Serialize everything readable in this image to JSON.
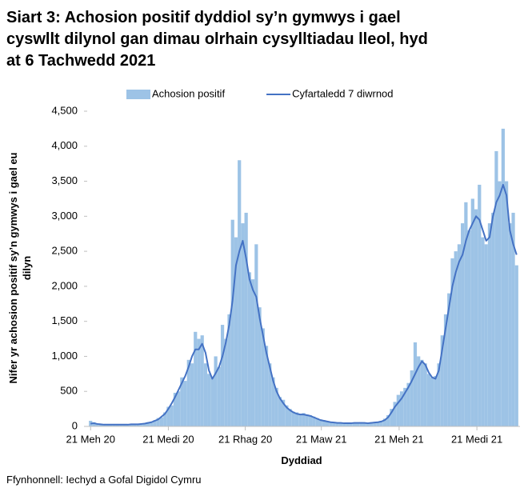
{
  "chart_data": {
    "type": "bar-line",
    "title_lines": [
      "Siart 3: Achosion positif dyddiol sy’n gymwys i gael",
      "cyswllt dilynol gan dimau olrhain cysylltiadau lleol, hyd",
      "at 6 Tachwedd 2021"
    ],
    "y_label_lines": [
      "Nifer yr achosion positif sy’n gymwys i gael eu",
      "dilyn"
    ],
    "x_label": "Dyddiad",
    "source": "Ffynhonnell: Iechyd a Gofal Digidol Cymru",
    "x": [
      0,
      4,
      8,
      12,
      16,
      20,
      24,
      28,
      32,
      36,
      40,
      44,
      48,
      52,
      56,
      60,
      64,
      68,
      72,
      76,
      80,
      84,
      88,
      92,
      96,
      100,
      104,
      108,
      112,
      116,
      120,
      124,
      128,
      132,
      136,
      140,
      144,
      148,
      152,
      156,
      160,
      164,
      168,
      172,
      176,
      180,
      184,
      188,
      192,
      196,
      200,
      204,
      208,
      212,
      216,
      220,
      224,
      228,
      232,
      236,
      240,
      244,
      248,
      252,
      256,
      260,
      264,
      268,
      272,
      276,
      280,
      284,
      288,
      292,
      296,
      300,
      304,
      308,
      312,
      316,
      320,
      324,
      328,
      332,
      336,
      340,
      344,
      348,
      352,
      356,
      360,
      364,
      368,
      372,
      376,
      380,
      384,
      388,
      392,
      396,
      400,
      404,
      408,
      412,
      416,
      420,
      424,
      428,
      432,
      436,
      440,
      444,
      448,
      452,
      456,
      460,
      464,
      468,
      472,
      476,
      480,
      484,
      488,
      492,
      496,
      500,
      504
    ],
    "series": [
      {
        "name": "Achosion positif",
        "kind": "bar",
        "color": "#9dc3e6",
        "values": [
          80,
          60,
          40,
          30,
          35,
          25,
          30,
          20,
          30,
          25,
          20,
          30,
          35,
          25,
          40,
          30,
          45,
          60,
          55,
          90,
          120,
          130,
          200,
          280,
          300,
          480,
          500,
          700,
          650,
          950,
          900,
          1350,
          1250,
          1300,
          900,
          750,
          700,
          1000,
          850,
          1450,
          1250,
          1600,
          2950,
          2700,
          3800,
          2900,
          3050,
          2200,
          2100,
          2600,
          1700,
          1400,
          1150,
          900,
          700,
          550,
          420,
          380,
          300,
          250,
          210,
          200,
          180,
          190,
          170,
          160,
          140,
          120,
          100,
          90,
          75,
          65,
          60,
          55,
          55,
          50,
          50,
          50,
          55,
          50,
          60,
          55,
          45,
          60,
          55,
          65,
          80,
          110,
          160,
          250,
          350,
          450,
          500,
          550,
          620,
          800,
          1200,
          1000,
          950,
          900,
          750,
          700,
          720,
          900,
          1300,
          1600,
          1900,
          2400,
          2500,
          2600,
          2900,
          3200,
          2800,
          3250,
          3100,
          3450,
          2700,
          2600,
          2900,
          3050,
          3930,
          3500,
          4250,
          3500,
          2900,
          3050,
          2300
        ]
      },
      {
        "name": "Cyfartaledd 7 diwrnod",
        "kind": "line",
        "color": "#4472c4",
        "values": [
          40,
          45,
          35,
          30,
          25,
          25,
          25,
          25,
          25,
          25,
          25,
          25,
          30,
          30,
          30,
          35,
          40,
          50,
          60,
          80,
          100,
          140,
          180,
          250,
          330,
          420,
          520,
          620,
          720,
          850,
          1000,
          1100,
          1100,
          1180,
          1050,
          800,
          680,
          760,
          850,
          1000,
          1200,
          1450,
          1800,
          2300,
          2500,
          2650,
          2400,
          2100,
          1950,
          1850,
          1550,
          1300,
          1050,
          850,
          650,
          500,
          400,
          330,
          270,
          230,
          200,
          180,
          170,
          170,
          160,
          150,
          130,
          110,
          90,
          80,
          70,
          60,
          55,
          50,
          50,
          45,
          45,
          45,
          50,
          50,
          50,
          50,
          45,
          50,
          55,
          60,
          70,
          90,
          130,
          200,
          280,
          340,
          400,
          480,
          560,
          650,
          750,
          850,
          930,
          880,
          770,
          700,
          680,
          800,
          1100,
          1400,
          1700,
          2000,
          2200,
          2350,
          2450,
          2650,
          2800,
          2900,
          3000,
          2950,
          2800,
          2650,
          2700,
          3000,
          3200,
          3300,
          3450,
          3300,
          2800,
          2600,
          2450
        ]
      }
    ],
    "xlim": [
      -4,
      508
    ],
    "xticks": [
      {
        "value": 0,
        "label": "21 Meh 20"
      },
      {
        "value": 92,
        "label": "21 Medi 20"
      },
      {
        "value": 183,
        "label": "21 Rhag 20"
      },
      {
        "value": 273,
        "label": "21 Maw 21"
      },
      {
        "value": 365,
        "label": "21 Meh 21"
      },
      {
        "value": 457,
        "label": "21 Medi 21"
      }
    ],
    "ylim": [
      0,
      4500
    ],
    "yticks": [
      0,
      {
        "value": 500,
        "label": "500"
      },
      {
        "value": 1000,
        "label": "1,000"
      },
      {
        "value": 1500,
        "label": "1,500"
      },
      {
        "value": 2000,
        "label": "2,000"
      },
      {
        "value": 2500,
        "label": "2,500"
      },
      {
        "value": 3000,
        "label": "3,000"
      },
      {
        "value": 3500,
        "label": "3,500"
      },
      {
        "value": 4000,
        "label": "4,000"
      },
      {
        "value": 4500,
        "label": "4,500"
      }
    ],
    "grid": false,
    "legend": "top"
  }
}
